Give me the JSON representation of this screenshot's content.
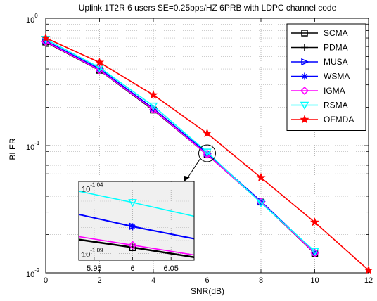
{
  "chart_data": {
    "type": "line",
    "title": "Uplink 1T2R 6 users SE=0.25bps/HZ 6PRB  with LDPC channel code",
    "xlabel": "SNR(dB)",
    "ylabel": "BLER",
    "xlim": [
      0,
      12
    ],
    "ylim": [
      0.01,
      1
    ],
    "yscale": "log",
    "grid": true,
    "legend_position": "top-right",
    "x_ticks": [
      "0",
      "2",
      "4",
      "6",
      "8",
      "10",
      "12"
    ],
    "y_ticks": [
      {
        "value": 1,
        "base": "10",
        "exp": "0"
      },
      {
        "value": 0.1,
        "base": "10",
        "exp": "-1"
      },
      {
        "value": 0.01,
        "base": "10",
        "exp": "-2"
      }
    ],
    "series": [
      {
        "name": "SCMA",
        "color": "#000000",
        "marker": "square",
        "x": [
          0,
          2,
          4,
          6,
          8,
          10
        ],
        "y": [
          0.65,
          0.39,
          0.19,
          0.085,
          0.036,
          0.0142
        ]
      },
      {
        "name": "PDMA",
        "color": "#000000",
        "marker": "plus",
        "x": [
          0,
          2,
          4,
          6,
          8,
          10
        ],
        "y": [
          0.655,
          0.392,
          0.192,
          0.085,
          0.036,
          0.0143
        ]
      },
      {
        "name": "MUSA",
        "color": "#0000ff",
        "marker": "triangle-right",
        "x": [
          0,
          2,
          4,
          6,
          8,
          10
        ],
        "y": [
          0.665,
          0.4,
          0.196,
          0.087,
          0.0365,
          0.0145
        ]
      },
      {
        "name": "WSMA",
        "color": "#0000ff",
        "marker": "star",
        "x": [
          0,
          2,
          4,
          6,
          8,
          10
        ],
        "y": [
          0.665,
          0.4,
          0.196,
          0.087,
          0.0365,
          0.0145
        ]
      },
      {
        "name": "IGMA",
        "color": "#ff00ff",
        "marker": "diamond",
        "x": [
          0,
          2,
          4,
          6,
          8,
          10
        ],
        "y": [
          0.655,
          0.392,
          0.192,
          0.085,
          0.036,
          0.0143
        ]
      },
      {
        "name": "RSMA",
        "color": "#00ffff",
        "marker": "triangle-down",
        "x": [
          0,
          2,
          4,
          6,
          8,
          10
        ],
        "y": [
          0.685,
          0.41,
          0.205,
          0.089,
          0.0355,
          0.0148
        ]
      },
      {
        "name": "OFMDA",
        "color": "#ff0000",
        "marker": "pentagram",
        "x": [
          0,
          2,
          4,
          6,
          8,
          10,
          12
        ],
        "y": [
          0.7,
          0.45,
          0.25,
          0.125,
          0.056,
          0.025,
          0.0105
        ]
      }
    ],
    "inset": {
      "xlim": [
        5.93,
        6.08
      ],
      "x_ticks": [
        "5.95",
        "6",
        "6.05"
      ],
      "y_ticks": [
        {
          "value": -1.04,
          "base": "10",
          "exp": "-1.04"
        },
        {
          "value": -1.09,
          "base": "10",
          "exp": "-1.09"
        }
      ],
      "series": [
        {
          "name": "SCMA",
          "color": "#000000",
          "marker": "square",
          "x": [
            5.93,
            6,
            6.08
          ],
          "y_log10": [
            -1.0795,
            -1.0855,
            -1.093
          ]
        },
        {
          "name": "PDMA",
          "color": "#000000",
          "marker": "plus",
          "x": [
            5.93,
            6,
            6.08
          ],
          "y_log10": [
            -1.079,
            -1.085,
            -1.0925
          ]
        },
        {
          "name": "MUSA",
          "color": "#0000ff",
          "marker": "triangle-right",
          "x": [
            5.93,
            6,
            6.08
          ],
          "y_log10": [
            -1.06,
            -1.0692,
            -1.0785
          ]
        },
        {
          "name": "WSMA",
          "color": "#0000ff",
          "marker": "star",
          "x": [
            5.93,
            6,
            6.08
          ],
          "y_log10": [
            -1.0602,
            -1.0695,
            -1.0788
          ]
        },
        {
          "name": "IGMA",
          "color": "#ff00ff",
          "marker": "diamond",
          "x": [
            5.93,
            6,
            6.08
          ],
          "y_log10": [
            -1.077,
            -1.0835,
            -1.091
          ]
        },
        {
          "name": "RSMA",
          "color": "#00ffff",
          "marker": "triangle-down",
          "x": [
            5.93,
            6,
            6.08
          ],
          "y_log10": [
            -1.0425,
            -1.051,
            -1.0615
          ]
        }
      ]
    }
  }
}
